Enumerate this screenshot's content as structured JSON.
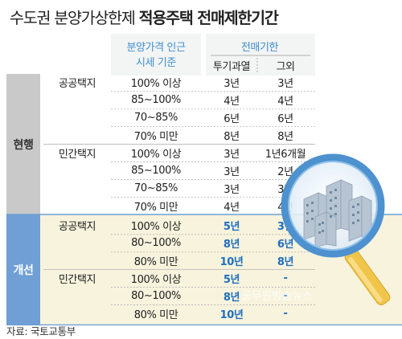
{
  "title": {
    "prefix": "수도권 분양가상한제",
    "bold": "적용주택 전매제한기간"
  },
  "headers": {
    "price_ratio_line1": "분양가격 인근",
    "price_ratio_line2": "시세 기준",
    "resale_period": "전매기한",
    "speculative_zone": "투기과열",
    "others": "그외"
  },
  "sections": [
    {
      "label": "현행",
      "groups": [
        {
          "land": "공공택지",
          "rows": [
            {
              "ratio": "100% 이상",
              "zone": "3년",
              "other": "3년"
            },
            {
              "ratio": "85~100%",
              "zone": "4년",
              "other": "4년"
            },
            {
              "ratio": "70~85%",
              "zone": "6년",
              "other": "6년"
            },
            {
              "ratio": "70% 미만",
              "zone": "8년",
              "other": "8년"
            }
          ]
        },
        {
          "land": "민간택지",
          "rows": [
            {
              "ratio": "100% 이상",
              "zone": "3년",
              "other": "1년6개월"
            },
            {
              "ratio": "85~100%",
              "zone": "3년",
              "other": "2년"
            },
            {
              "ratio": "70~85%",
              "zone": "3년",
              "other": "3년"
            },
            {
              "ratio": "70% 미만",
              "zone": "4년",
              "other": "4년"
            }
          ]
        }
      ]
    },
    {
      "label": "개선",
      "groups": [
        {
          "land": "공공택지",
          "rows": [
            {
              "ratio": "100% 이상",
              "zone": "5년",
              "other": "3년"
            },
            {
              "ratio": "80~100%",
              "zone": "8년",
              "other": "6년"
            },
            {
              "ratio": "80% 미만",
              "zone": "10년",
              "other": "8년"
            }
          ]
        },
        {
          "land": "민간택지",
          "rows": [
            {
              "ratio": "100% 이상",
              "zone": "5년",
              "other": "-"
            },
            {
              "ratio": "80~100%",
              "zone": "8년",
              "other": "-"
            },
            {
              "ratio": "80% 미만",
              "zone": "10년",
              "other": "-"
            }
          ]
        }
      ]
    }
  ],
  "source": "자료: 국토교통부",
  "watermark": "공무원방송뉴스",
  "colors": {
    "current_label_bg": "#c9c9c9",
    "improved_label_bg": "#6f9fd4",
    "improved_rows_bg": "#f7f3dd",
    "highlight_text": "#1f6fbd",
    "header_text": "#3d8fd0",
    "header_bg": "#e9eaea"
  },
  "icons": [
    "magnifier-building-icon"
  ]
}
